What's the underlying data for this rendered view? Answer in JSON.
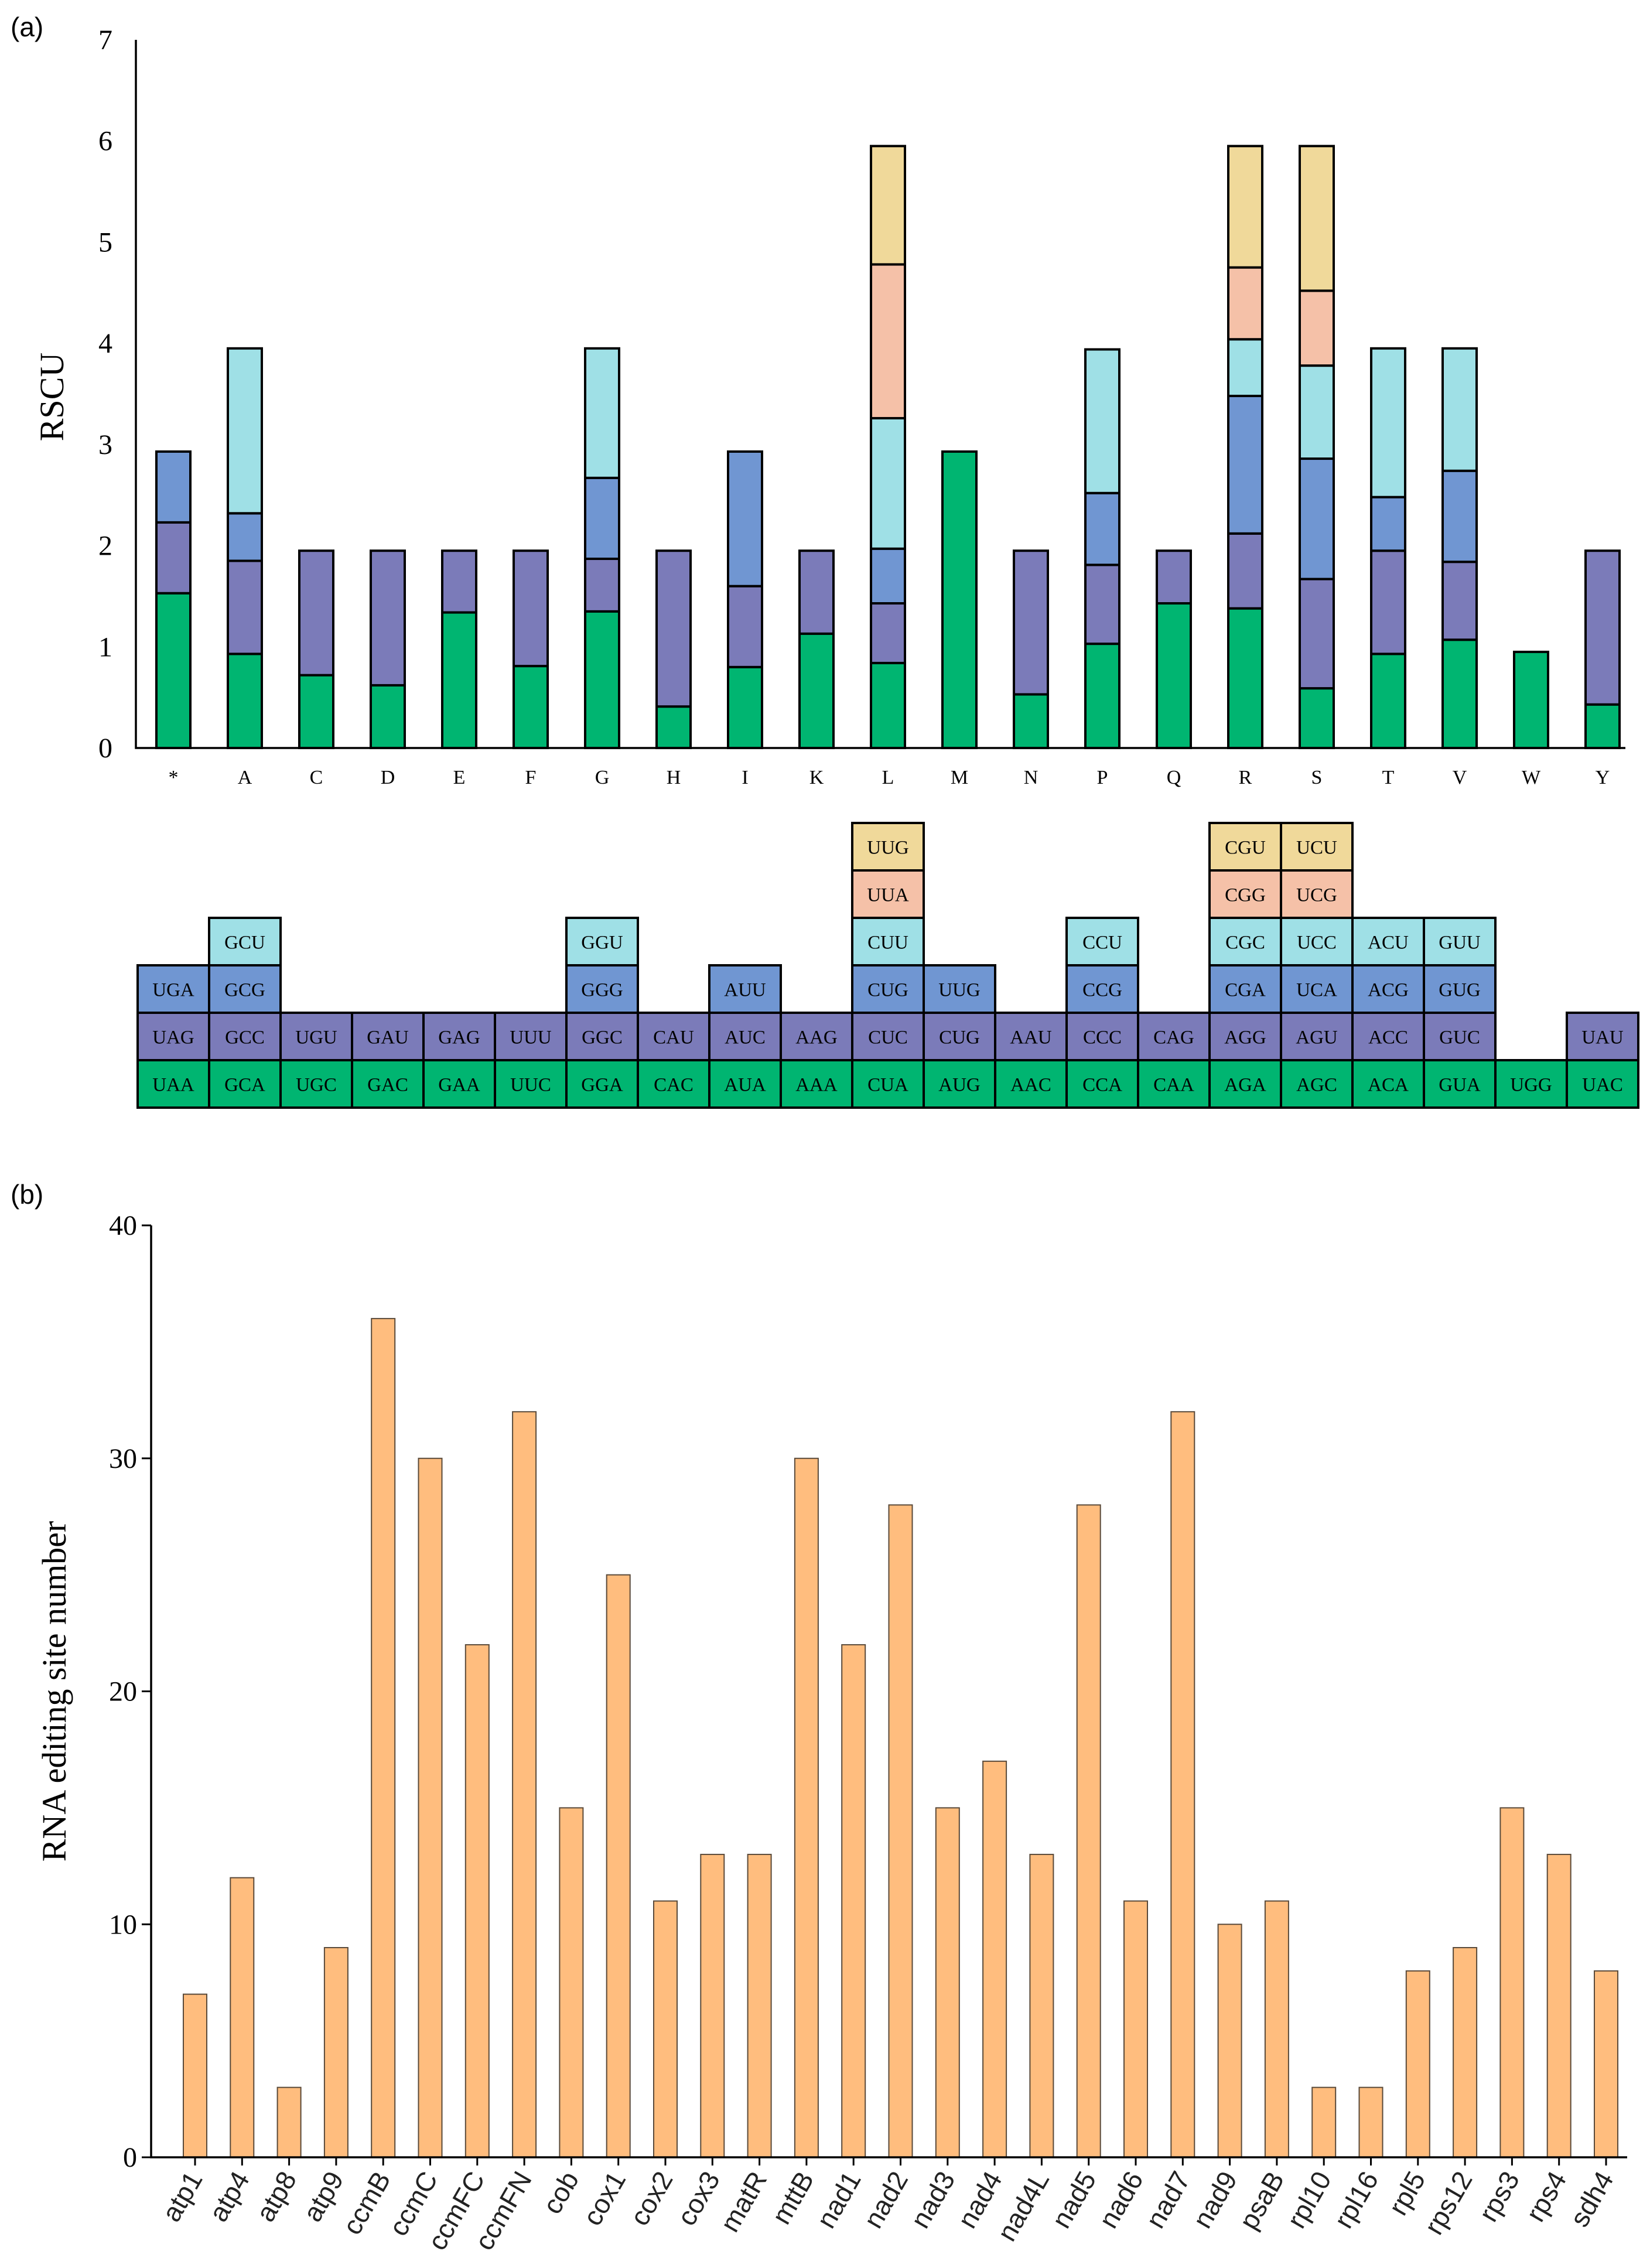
{
  "panels": {
    "a": "(a)",
    "b": "(b)"
  },
  "colors": {
    "pos1": "#00b571",
    "pos2": "#7b7bb9",
    "pos3": "#7096d2",
    "pos4": "#9fe0e6",
    "pos5": "#f5c1a8",
    "pos6": "#f0d99a",
    "edit_bar": "#ffbd7e"
  },
  "chart_data": [
    {
      "type": "bar",
      "stacked": true,
      "title": "",
      "xlabel": "",
      "ylabel": "RSCU",
      "ylim": [
        0,
        7
      ],
      "yticks": [
        "0",
        "1",
        "2",
        "3",
        "4",
        "5",
        "6",
        "7"
      ],
      "categories": [
        "*",
        "A",
        "C",
        "D",
        "E",
        "F",
        "G",
        "H",
        "I",
        "K",
        "L",
        "M",
        "N",
        "P",
        "Q",
        "R",
        "S",
        "T",
        "V",
        "W",
        "Y"
      ],
      "stacks": [
        [
          1.53,
          0.7,
          0.7
        ],
        [
          0.93,
          0.92,
          0.47,
          1.63
        ],
        [
          0.72,
          1.23
        ],
        [
          0.62,
          1.33
        ],
        [
          1.34,
          0.61
        ],
        [
          0.81,
          1.14
        ],
        [
          1.35,
          0.52,
          0.8,
          1.28
        ],
        [
          0.41,
          1.54
        ],
        [
          0.8,
          0.8,
          1.33
        ],
        [
          1.13,
          0.82
        ],
        [
          0.84,
          0.59,
          0.54,
          1.29,
          1.52,
          1.17
        ],
        [
          2.93
        ],
        [
          0.53,
          1.42
        ],
        [
          1.03,
          0.78,
          0.71,
          1.42
        ],
        [
          1.43,
          0.52
        ],
        [
          1.38,
          0.74,
          1.36,
          0.56,
          0.71,
          1.2
        ],
        [
          0.59,
          1.08,
          1.19,
          0.92,
          0.74,
          1.43
        ],
        [
          0.93,
          1.02,
          0.53,
          1.47
        ],
        [
          1.07,
          0.77,
          0.9,
          1.21
        ],
        [
          0.95
        ],
        [
          0.43,
          1.52
        ]
      ],
      "codon_table": [
        [
          "UAA",
          "UAG",
          "UGA"
        ],
        [
          "GCA",
          "GCC",
          "GCG",
          "GCU"
        ],
        [
          "UGC",
          "UGU"
        ],
        [
          "GAC",
          "GAU"
        ],
        [
          "GAA",
          "GAG"
        ],
        [
          "UUC",
          "UUU"
        ],
        [
          "GGA",
          "GGC",
          "GGG",
          "GGU"
        ],
        [
          "CAC",
          "CAU"
        ],
        [
          "AUA",
          "AUC",
          "AUU"
        ],
        [
          "AAA",
          "AAG"
        ],
        [
          "CUA",
          "CUC",
          "CUG",
          "CUU",
          "UUA",
          "UUG"
        ],
        [
          "AUG",
          "CUG",
          "UUG"
        ],
        [
          "AAC",
          "AAU"
        ],
        [
          "CCA",
          "CCC",
          "CCG",
          "CCU"
        ],
        [
          "CAA",
          "CAG"
        ],
        [
          "AGA",
          "AGG",
          "CGA",
          "CGC",
          "CGG",
          "CGU"
        ],
        [
          "AGC",
          "AGU",
          "UCA",
          "UCC",
          "UCG",
          "UCU"
        ],
        [
          "ACA",
          "ACC",
          "ACG",
          "ACU"
        ],
        [
          "GUA",
          "GUC",
          "GUG",
          "GUU"
        ],
        [
          "UGG"
        ],
        [
          "UAC",
          "UAU"
        ]
      ]
    },
    {
      "type": "bar",
      "title": "",
      "xlabel": "",
      "ylabel": "RNA editing site number",
      "ylim": [
        0,
        40
      ],
      "yticks": [
        "0",
        "10",
        "20",
        "30",
        "40"
      ],
      "categories": [
        "atp1",
        "atp4",
        "atp8",
        "atp9",
        "ccmB",
        "ccmC",
        "ccmFC",
        "ccmFN",
        "cob",
        "cox1",
        "cox2",
        "cox3",
        "matR",
        "mttB",
        "nad1",
        "nad2",
        "nad3",
        "nad4",
        "nad4L",
        "nad5",
        "nad6",
        "nad7",
        "nad9",
        "psaB",
        "rpl10",
        "rpl16",
        "rpl5",
        "rps12",
        "rps3",
        "rps4",
        "sdh4"
      ],
      "values": [
        7,
        12,
        3,
        9,
        36,
        30,
        22,
        32,
        15,
        25,
        11,
        13,
        13,
        30,
        22,
        28,
        15,
        17,
        13,
        28,
        11,
        32,
        10,
        11,
        3,
        3,
        8,
        9,
        15,
        13,
        8
      ]
    }
  ]
}
